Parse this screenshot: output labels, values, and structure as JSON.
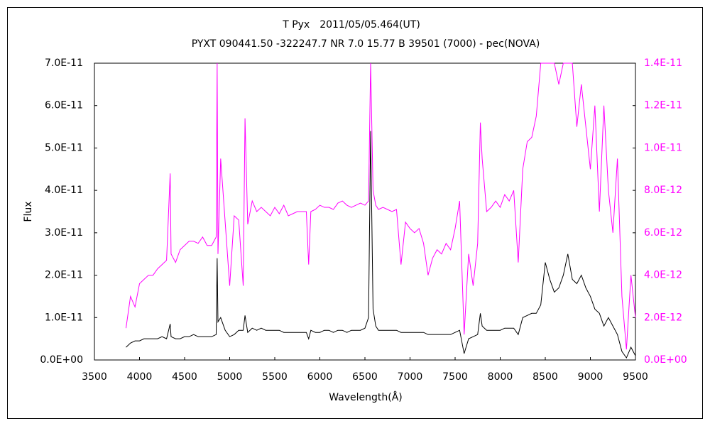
{
  "chart_data": {
    "type": "line",
    "title": "T Pyx　2011/05/05.464(UT)",
    "subtitle": "PYXT 090441.50 -322247.7 NR 7.0 15.77 B 39501 (7000) - pec(NOVA)",
    "x_label": "Wavelength(Å)",
    "y_label": "Flux",
    "xlim": [
      3500,
      9500
    ],
    "xticks": [
      3500,
      4000,
      4500,
      5000,
      5500,
      6000,
      6500,
      7000,
      7500,
      8000,
      8500,
      9000,
      9500
    ],
    "ylim": [
      0,
      7e-11
    ],
    "yticks": [
      {
        "value": 0,
        "label": "0.0E+00"
      },
      {
        "value": 1e-11,
        "label": "1.0E-11"
      },
      {
        "value": 2e-11,
        "label": "2.0E-11"
      },
      {
        "value": 3e-11,
        "label": "3.0E-11"
      },
      {
        "value": 4e-11,
        "label": "4.0E-11"
      },
      {
        "value": 5e-11,
        "label": "5.0E-11"
      },
      {
        "value": 6e-11,
        "label": "6.0E-11"
      },
      {
        "value": 7e-11,
        "label": "7.0E-11"
      }
    ],
    "y2lim": [
      0,
      1.4e-11
    ],
    "y2ticks": [
      {
        "value": 0,
        "label": "0.0E+00"
      },
      {
        "value": 2e-12,
        "label": "2.0E-12"
      },
      {
        "value": 4e-12,
        "label": "4.0E-12"
      },
      {
        "value": 6e-12,
        "label": "6.0E-12"
      },
      {
        "value": 8e-12,
        "label": "8.0E-12"
      },
      {
        "value": 1e-11,
        "label": "1.0E-11"
      },
      {
        "value": 1.2e-11,
        "label": "1.2E-11"
      },
      {
        "value": 1.4e-11,
        "label": "1.4E-11"
      }
    ],
    "y2_color": "#ff00ff",
    "x": [
      3850,
      3900,
      3950,
      4000,
      4050,
      4100,
      4150,
      4200,
      4250,
      4300,
      4340,
      4350,
      4400,
      4450,
      4500,
      4550,
      4600,
      4650,
      4700,
      4750,
      4800,
      4850,
      4861,
      4870,
      4900,
      4950,
      5000,
      5050,
      5100,
      5150,
      5170,
      5200,
      5250,
      5300,
      5350,
      5400,
      5450,
      5500,
      5550,
      5600,
      5650,
      5700,
      5750,
      5800,
      5850,
      5876,
      5900,
      5950,
      6000,
      6050,
      6100,
      6150,
      6200,
      6250,
      6300,
      6350,
      6400,
      6450,
      6500,
      6540,
      6563,
      6590,
      6620,
      6650,
      6700,
      6750,
      6800,
      6850,
      6900,
      6950,
      7000,
      7050,
      7100,
      7150,
      7200,
      7250,
      7300,
      7350,
      7400,
      7450,
      7500,
      7550,
      7600,
      7650,
      7700,
      7750,
      7780,
      7800,
      7850,
      7900,
      7950,
      8000,
      8050,
      8100,
      8150,
      8200,
      8250,
      8300,
      8350,
      8400,
      8450,
      8500,
      8550,
      8600,
      8650,
      8700,
      8750,
      8800,
      8850,
      8900,
      8950,
      9000,
      9050,
      9100,
      9150,
      9200,
      9250,
      9300,
      9350,
      9400,
      9450,
      9500
    ],
    "series": [
      {
        "color": "#000000",
        "values": [
          3e-12,
          4e-12,
          4.5e-12,
          4.5e-12,
          5e-12,
          5e-12,
          5e-12,
          5e-12,
          5.5e-12,
          5e-12,
          8.5e-12,
          5.5e-12,
          5e-12,
          5e-12,
          5.5e-12,
          5.5e-12,
          6e-12,
          5.5e-12,
          5.5e-12,
          5.5e-12,
          5.5e-12,
          6e-12,
          2.4e-11,
          9e-12,
          1e-11,
          7e-12,
          5.5e-12,
          6e-12,
          7e-12,
          7e-12,
          1.05e-11,
          6.5e-12,
          7.5e-12,
          7e-12,
          7.5e-12,
          7e-12,
          7e-12,
          7e-12,
          7e-12,
          6.5e-12,
          6.5e-12,
          6.5e-12,
          6.5e-12,
          6.5e-12,
          6.5e-12,
          5e-12,
          7e-12,
          6.5e-12,
          6.5e-12,
          7e-12,
          7e-12,
          6.5e-12,
          7e-12,
          7e-12,
          6.5e-12,
          7e-12,
          7e-12,
          7e-12,
          7.5e-12,
          1e-11,
          5.4e-11,
          1.2e-11,
          8e-12,
          7e-12,
          7e-12,
          7e-12,
          7e-12,
          7e-12,
          6.5e-12,
          6.5e-12,
          6.5e-12,
          6.5e-12,
          6.5e-12,
          6.5e-12,
          6e-12,
          6e-12,
          6e-12,
          6e-12,
          6e-12,
          6e-12,
          6.5e-12,
          7e-12,
          1.5e-12,
          5e-12,
          5.5e-12,
          6e-12,
          1.1e-11,
          8e-12,
          7e-12,
          7e-12,
          7e-12,
          7e-12,
          7.5e-12,
          7.5e-12,
          7.5e-12,
          6e-12,
          1e-11,
          1.05e-11,
          1.1e-11,
          1.1e-11,
          1.3e-11,
          2.3e-11,
          1.9e-11,
          1.6e-11,
          1.7e-11,
          2e-11,
          2.5e-11,
          1.9e-11,
          1.8e-11,
          2e-11,
          1.7e-11,
          1.5e-11,
          1.2e-11,
          1.1e-11,
          8e-12,
          1e-11,
          8e-12,
          6e-12,
          2e-12,
          5e-13,
          3e-12,
          1e-12
        ]
      },
      {
        "color": "#ff00ff",
        "axis": "y2",
        "values": [
          1.5e-12,
          3e-12,
          2.5e-12,
          3.6e-12,
          3.8e-12,
          4e-12,
          4e-12,
          4.3e-12,
          4.5e-12,
          4.7e-12,
          8.8e-12,
          5e-12,
          4.6e-12,
          5.2e-12,
          5.4e-12,
          5.6e-12,
          5.6e-12,
          5.5e-12,
          5.8e-12,
          5.4e-12,
          5.4e-12,
          5.8e-12,
          1.4e-11,
          5e-12,
          9.5e-12,
          6.5e-12,
          3.5e-12,
          6.8e-12,
          6.6e-12,
          3.5e-12,
          1.14e-11,
          6.4e-12,
          7.5e-12,
          7e-12,
          7.2e-12,
          7e-12,
          6.8e-12,
          7.2e-12,
          6.9e-12,
          7.3e-12,
          6.8e-12,
          6.9e-12,
          7e-12,
          7e-12,
          7e-12,
          4.5e-12,
          7e-12,
          7.1e-12,
          7.3e-12,
          7.2e-12,
          7.2e-12,
          7.1e-12,
          7.4e-12,
          7.5e-12,
          7.3e-12,
          7.2e-12,
          7.3e-12,
          7.4e-12,
          7.3e-12,
          7.5e-12,
          1.4e-11,
          8e-12,
          7.3e-12,
          7.1e-12,
          7.2e-12,
          7.1e-12,
          7e-12,
          7.1e-12,
          4.5e-12,
          6.5e-12,
          6.2e-12,
          6e-12,
          6.2e-12,
          5.5e-12,
          4e-12,
          4.8e-12,
          5.2e-12,
          5e-12,
          5.5e-12,
          5.2e-12,
          6.2e-12,
          7.5e-12,
          1.2e-12,
          5e-12,
          3.5e-12,
          5.5e-12,
          1.12e-11,
          9.5e-12,
          7e-12,
          7.2e-12,
          7.5e-12,
          7.2e-12,
          7.8e-12,
          7.5e-12,
          8e-12,
          4.6e-12,
          9e-12,
          1.03e-11,
          1.05e-11,
          1.15e-11,
          1.4e-11,
          1.4e-11,
          1.4e-11,
          1.4e-11,
          1.3e-11,
          1.4e-11,
          1.4e-11,
          1.4e-11,
          1.1e-11,
          1.3e-11,
          1.1e-11,
          9e-12,
          1.2e-11,
          7e-12,
          1.2e-11,
          8e-12,
          6e-12,
          9.5e-12,
          3e-12,
          5e-13,
          4e-12,
          2e-12
        ]
      }
    ]
  }
}
